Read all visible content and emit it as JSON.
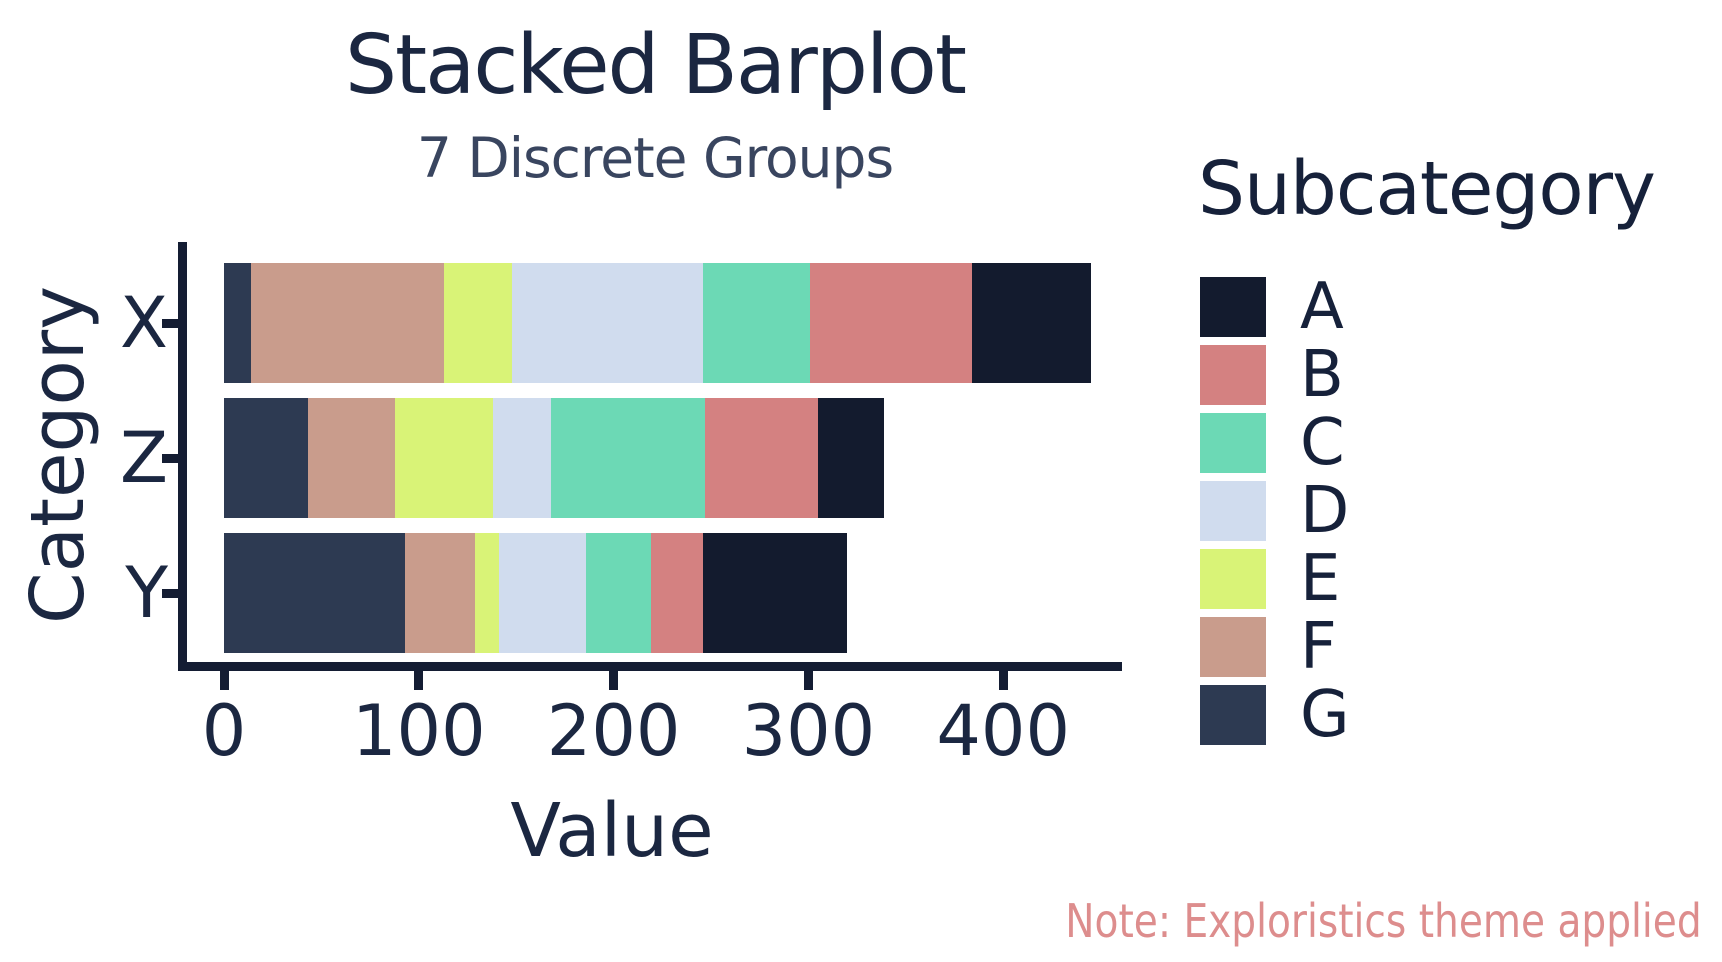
{
  "title": "Stacked Barplot",
  "subtitle": "7 Discrete Groups",
  "note": "Note: Exploristics theme applied",
  "colors": {
    "background": "#ffffff",
    "axis": "#141d33",
    "title_text": "#1b2741",
    "subtitle_text": "#39455f",
    "note_text": "#dd8d8d"
  },
  "chart_data": {
    "type": "bar",
    "orientation": "horizontal",
    "stacked": true,
    "title": "Stacked Barplot",
    "subtitle": "7 Discrete Groups",
    "xlabel": "Value",
    "ylabel": "Category",
    "legend_title": "Subcategory",
    "legend_position": "right",
    "grid": false,
    "categories": [
      "X",
      "Z",
      "Y"
    ],
    "x_ticks": [
      0,
      100,
      200,
      300,
      400
    ],
    "xlim": [
      -25,
      460
    ],
    "stack_order_from_origin": [
      "G",
      "F",
      "E",
      "D",
      "C",
      "B",
      "A"
    ],
    "series": [
      {
        "name": "A",
        "color": "#131b2e",
        "values": [
          61,
          34,
          74
        ]
      },
      {
        "name": "B",
        "color": "#d48181",
        "values": [
          83,
          58,
          27
        ]
      },
      {
        "name": "C",
        "color": "#6cd9b5",
        "values": [
          55,
          79,
          33
        ]
      },
      {
        "name": "D",
        "color": "#d0dcee",
        "values": [
          98,
          30,
          45
        ]
      },
      {
        "name": "E",
        "color": "#d9f377",
        "values": [
          35,
          50,
          12
        ]
      },
      {
        "name": "F",
        "color": "#c99c8c",
        "values": [
          99,
          45,
          36
        ]
      },
      {
        "name": "G",
        "color": "#2d3a52",
        "values": [
          14,
          43,
          93
        ]
      }
    ],
    "totals": {
      "X": 445,
      "Z": 339,
      "Y": 320
    }
  }
}
